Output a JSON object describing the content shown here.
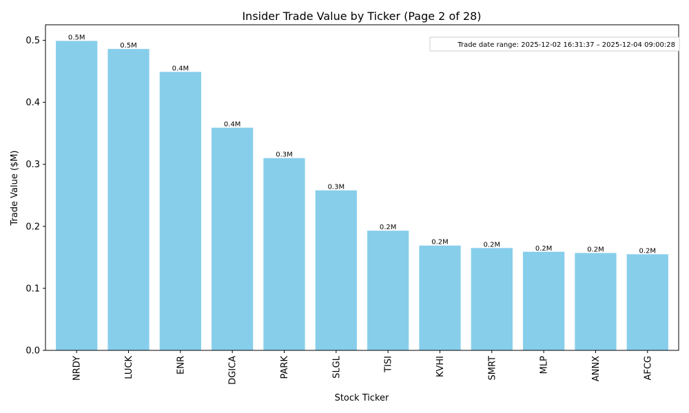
{
  "chart_data": {
    "type": "bar",
    "title": "Insider Trade Value by Ticker (Page 2 of 28)",
    "xlabel": "Stock Ticker",
    "ylabel": "Trade Value ($M)",
    "categories": [
      "NRDY",
      "LUCK",
      "ENR",
      "DGICA",
      "PARK",
      "SLGL",
      "TISI",
      "KVHI",
      "SMRT",
      "MLP",
      "ANNX",
      "AFCG"
    ],
    "values": [
      0.499,
      0.486,
      0.449,
      0.359,
      0.31,
      0.258,
      0.193,
      0.169,
      0.165,
      0.159,
      0.157,
      0.155
    ],
    "data_labels": [
      "0.5M",
      "0.5M",
      "0.4M",
      "0.4M",
      "0.3M",
      "0.3M",
      "0.2M",
      "0.2M",
      "0.2M",
      "0.2M",
      "0.2M",
      "0.2M"
    ],
    "ylim": [
      0,
      0.525
    ],
    "yticks": [
      0.0,
      0.1,
      0.2,
      0.3,
      0.4,
      0.5
    ],
    "ytick_labels": [
      "0.0",
      "0.1",
      "0.2",
      "0.3",
      "0.4",
      "0.5"
    ],
    "grid": false,
    "bar_color": "#87ceeb",
    "annotation": "Trade date range: 2025-12-02 16:31:37 – 2025-12-04 09:00:28"
  }
}
